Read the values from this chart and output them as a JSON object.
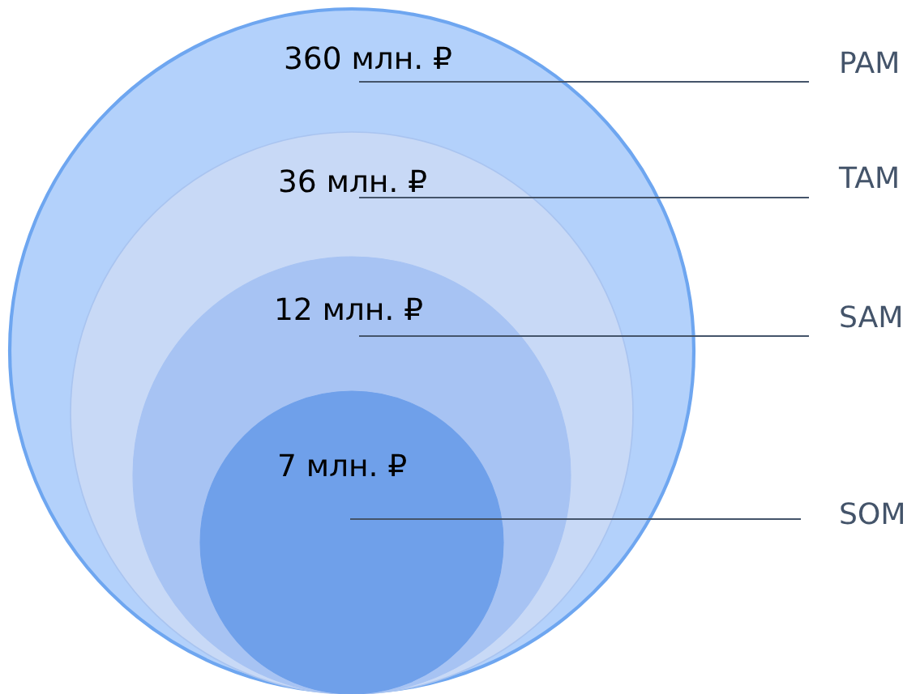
{
  "chart_data": {
    "type": "other",
    "categories": [
      "PAM",
      "TAM",
      "SAM",
      "SOM"
    ],
    "values": [
      360,
      36,
      12,
      7
    ],
    "value_labels": [
      "360 млн. ₽",
      "36 млн. ₽",
      "12 млн. ₽",
      "7 млн. ₽"
    ],
    "colors": [
      "#b3d1fb",
      "#c8d9f6",
      "#a7c3f3",
      "#6fa0ea"
    ]
  }
}
